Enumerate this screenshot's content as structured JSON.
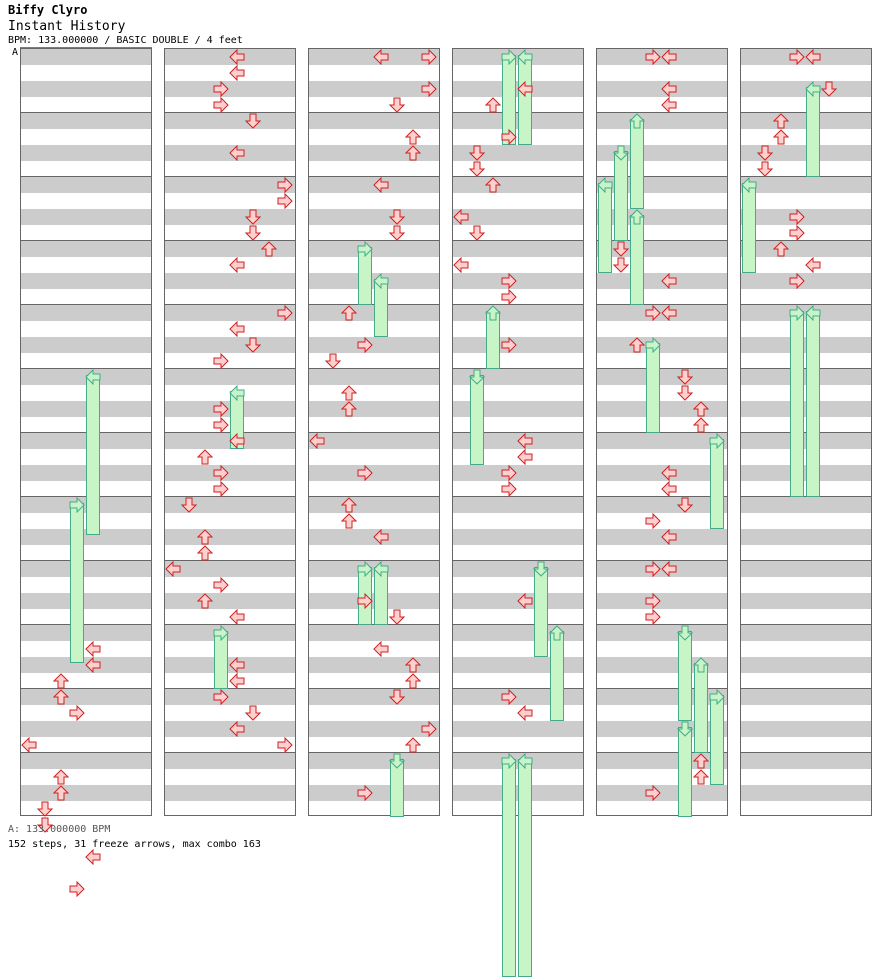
{
  "header": {
    "artist": "Biffy Clyro",
    "song": "Instant History",
    "info": "BPM: 133.000000 / BASIC DOUBLE / 4 feet"
  },
  "bpm_marker": "A",
  "footer": {
    "bpm": "A: 133.000000 BPM",
    "stats": "152 steps, 31 freeze arrows, max combo 163"
  },
  "colors": {
    "arrow_fill": "#ffd0d0",
    "arrow_stroke": "#d02020",
    "freeze_fill": "#c8f5c8",
    "freeze_stroke": "#44aa88",
    "stripe": "#cccccc"
  },
  "columns": [
    {
      "notes": [
        [
          5,
          4,
          2.6
        ],
        [
          7,
          3,
          2.6
        ],
        [
          9.25,
          4
        ],
        [
          9.5,
          4
        ],
        [
          9.75,
          2
        ],
        [
          10,
          2
        ],
        [
          10.25,
          3
        ],
        [
          10.75,
          0
        ],
        [
          11.25,
          2
        ],
        [
          11.5,
          2
        ],
        [
          11.75,
          1
        ],
        [
          12,
          1
        ],
        [
          12.5,
          4
        ],
        [
          13,
          3
        ]
      ]
    },
    {
      "notes": [
        [
          0,
          4
        ],
        [
          0.25,
          4
        ],
        [
          0.5,
          3
        ],
        [
          0.75,
          3
        ],
        [
          1,
          5
        ],
        [
          1.5,
          4
        ],
        [
          2,
          7
        ],
        [
          2.25,
          7
        ],
        [
          2.5,
          5
        ],
        [
          2.75,
          5
        ],
        [
          3,
          6
        ],
        [
          3.25,
          4
        ],
        [
          4,
          7
        ],
        [
          4.25,
          4
        ],
        [
          4.5,
          5
        ],
        [
          4.75,
          3
        ],
        [
          5.25,
          4,
          1
        ],
        [
          5.5,
          3
        ],
        [
          5.75,
          3
        ],
        [
          6,
          4
        ],
        [
          6.25,
          2
        ],
        [
          6.5,
          3
        ],
        [
          6.75,
          3
        ],
        [
          7,
          1
        ],
        [
          7.5,
          2
        ],
        [
          7.75,
          2
        ],
        [
          8,
          0
        ],
        [
          8.25,
          3
        ],
        [
          8.5,
          2
        ],
        [
          8.75,
          4
        ],
        [
          9,
          3,
          1
        ],
        [
          9.5,
          4
        ],
        [
          9.75,
          4
        ],
        [
          10,
          3
        ],
        [
          10.25,
          5
        ],
        [
          10.5,
          4
        ],
        [
          10.75,
          7
        ]
      ]
    },
    {
      "notes": [
        [
          0,
          4
        ],
        [
          0,
          7
        ],
        [
          0.5,
          7
        ],
        [
          0.75,
          5
        ],
        [
          1.25,
          6
        ],
        [
          1.5,
          6
        ],
        [
          2,
          4
        ],
        [
          2.5,
          5
        ],
        [
          2.75,
          5
        ],
        [
          3,
          3,
          1
        ],
        [
          3.5,
          4,
          1
        ],
        [
          4,
          2
        ],
        [
          4.5,
          3
        ],
        [
          4.75,
          1
        ],
        [
          5.25,
          2
        ],
        [
          5.5,
          2
        ],
        [
          6,
          0
        ],
        [
          6.5,
          3
        ],
        [
          7,
          2
        ],
        [
          7.25,
          2
        ],
        [
          7.5,
          4
        ],
        [
          8,
          3,
          1
        ],
        [
          8,
          4,
          1
        ],
        [
          8.5,
          3
        ],
        [
          8.75,
          5
        ],
        [
          9.25,
          4
        ],
        [
          9.5,
          6
        ],
        [
          9.75,
          6
        ],
        [
          10,
          5
        ],
        [
          10.5,
          7
        ],
        [
          10.75,
          6
        ],
        [
          11,
          5,
          1
        ],
        [
          11.5,
          3
        ]
      ]
    },
    {
      "notes": [
        [
          0,
          3,
          1.5
        ],
        [
          0,
          4,
          1.5
        ],
        [
          0.5,
          4
        ],
        [
          0.75,
          2
        ],
        [
          1.25,
          3
        ],
        [
          1.5,
          1
        ],
        [
          1.75,
          1
        ],
        [
          2,
          2
        ],
        [
          2.5,
          0
        ],
        [
          2.75,
          1
        ],
        [
          3.25,
          0
        ],
        [
          3.5,
          3
        ],
        [
          3.75,
          3
        ],
        [
          4,
          2,
          1
        ],
        [
          4.5,
          3
        ],
        [
          5,
          1,
          1.5
        ],
        [
          6,
          4
        ],
        [
          6.25,
          4
        ],
        [
          6.5,
          3
        ],
        [
          6.75,
          3
        ],
        [
          8,
          5,
          1.5
        ],
        [
          8.5,
          4
        ],
        [
          9,
          6,
          1.5
        ],
        [
          10,
          3
        ],
        [
          10.25,
          4
        ],
        [
          11,
          3,
          3.5
        ],
        [
          11,
          4,
          3.5
        ]
      ]
    },
    {
      "notes": [
        [
          0,
          3
        ],
        [
          0,
          4
        ],
        [
          0.5,
          4
        ],
        [
          0.75,
          4
        ],
        [
          1,
          2,
          1.5
        ],
        [
          1.5,
          1,
          1.5
        ],
        [
          2,
          0,
          1.5
        ],
        [
          2.5,
          2,
          1.5
        ],
        [
          3,
          1
        ],
        [
          3.25,
          1
        ],
        [
          3.5,
          4
        ],
        [
          4,
          3
        ],
        [
          4,
          4
        ],
        [
          4.5,
          2
        ],
        [
          4.5,
          3,
          1.5
        ],
        [
          5,
          5
        ],
        [
          5.25,
          5
        ],
        [
          5.5,
          6
        ],
        [
          5.75,
          6
        ],
        [
          6,
          7,
          1.5
        ],
        [
          6.5,
          4
        ],
        [
          6.75,
          4
        ],
        [
          7,
          5
        ],
        [
          7.25,
          3
        ],
        [
          7.5,
          4
        ],
        [
          8,
          3
        ],
        [
          8,
          4
        ],
        [
          8.5,
          3
        ],
        [
          8.75,
          3
        ],
        [
          9,
          5,
          1.5
        ],
        [
          9.5,
          6,
          1.5
        ],
        [
          10,
          7,
          1.5
        ],
        [
          10.5,
          5,
          1.5
        ],
        [
          11,
          6
        ],
        [
          11.25,
          6
        ],
        [
          11.5,
          3
        ]
      ]
    },
    {
      "notes": [
        [
          0,
          3
        ],
        [
          0,
          4
        ],
        [
          0.5,
          5
        ],
        [
          0.5,
          4,
          1.5
        ],
        [
          1,
          2
        ],
        [
          1.25,
          2
        ],
        [
          1.5,
          1
        ],
        [
          1.75,
          1
        ],
        [
          2,
          0,
          1.5
        ],
        [
          2.5,
          3
        ],
        [
          2.75,
          3
        ],
        [
          3,
          2
        ],
        [
          3.25,
          4
        ],
        [
          3.5,
          3
        ],
        [
          4,
          3,
          3
        ],
        [
          4,
          4,
          3
        ]
      ]
    }
  ]
}
